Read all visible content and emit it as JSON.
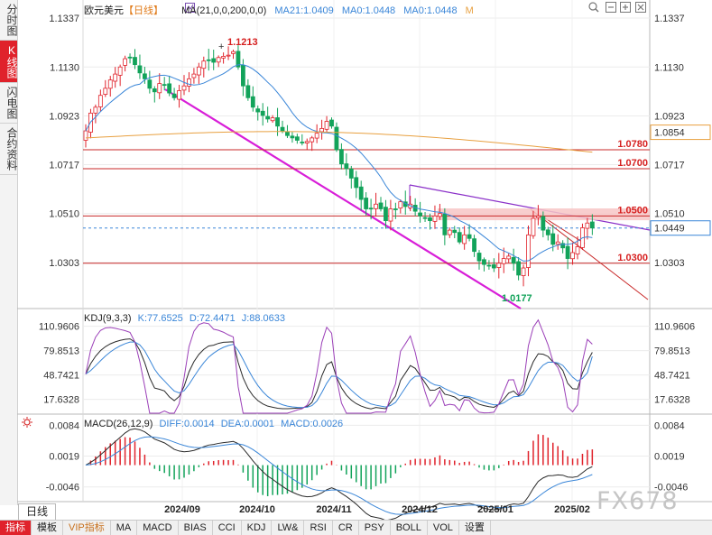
{
  "left_tabs": [
    "分时图",
    "K线图",
    "闪电图",
    "合约资料"
  ],
  "active_tab": 1,
  "header": {
    "symbol": "欧元美元",
    "period_tag": "【日线】",
    "ma_label": "MA(21,0,0,200,0,0)",
    "ma21": "MA21:1.0409",
    "ma0a": "MA0:1.0448",
    "ma0b": "MA0:1.0448",
    "m": "M"
  },
  "kdj_legend": {
    "name": "KDJ(9,3,3)",
    "k": "K:77.6525",
    "d": "D:72.4471",
    "j": "J:88.0633"
  },
  "macd_legend": {
    "name": "MACD(26,12,9)",
    "diff": "DIFF:0.0014",
    "dea": "DEA:0.0001",
    "macd": "MACD:0.0026"
  },
  "period_button": "日线",
  "bottom_tabs": [
    "指标",
    "模板",
    "VIP指标",
    "MA",
    "MACD",
    "BIAS",
    "CCI",
    "KDJ",
    "LW&",
    "RSI",
    "CR",
    "PSY",
    "BOLL",
    "VOL",
    "设置"
  ],
  "watermark": "FX678",
  "chart_data": [
    {
      "type": "candlestick",
      "instrument": "欧元美元",
      "y_ticks": [
        "1.1337",
        "1.1130",
        "1.0923",
        "1.0717",
        "1.0510",
        "1.0303"
      ],
      "ylim": [
        1.01,
        1.1337
      ],
      "x_ticks": [
        "2024/09",
        "2024/10",
        "2024/11",
        "2024/12",
        "2025/01",
        "2025/02"
      ],
      "high_label": "1.1213",
      "low_label": "1.0177",
      "current_price": "1.0449",
      "price_tags": [
        "1.0854"
      ],
      "levels": [
        {
          "label": "1.0780",
          "value": 1.078
        },
        {
          "label": "1.0700",
          "value": 1.07
        },
        {
          "label": "1.0500",
          "value": 1.05
        },
        {
          "label": "1.0300",
          "value": 1.03
        }
      ],
      "close_series": [
        1.086,
        1.0935,
        1.096,
        1.101,
        1.104,
        1.1075,
        1.11,
        1.113,
        1.1165,
        1.117,
        1.114,
        1.1105,
        1.108,
        1.104,
        1.1025,
        1.106,
        1.1055,
        1.102,
        1.1,
        1.103,
        1.105,
        1.108,
        1.11,
        1.113,
        1.1155,
        1.116,
        1.115,
        1.117,
        1.1175,
        1.118,
        1.1195,
        1.113,
        1.105,
        1.1,
        1.096,
        1.094,
        1.0925,
        1.091,
        1.0915,
        1.088,
        1.086,
        1.084,
        1.083,
        1.082,
        1.081,
        1.0815,
        1.083,
        1.085,
        1.087,
        1.09,
        1.088,
        1.078,
        1.072,
        1.07,
        1.066,
        1.062,
        1.057,
        1.053,
        1.053,
        1.055,
        1.053,
        1.048,
        1.053,
        1.053,
        1.056,
        1.054,
        1.055,
        1.052,
        1.05,
        1.049,
        1.048,
        1.05,
        1.051,
        1.042,
        1.044,
        1.043,
        1.039,
        1.042,
        1.0405,
        1.035,
        1.031,
        1.0295,
        1.029,
        1.028,
        1.03,
        1.032,
        1.033,
        1.03,
        1.025,
        1.028,
        1.042,
        1.049,
        1.05,
        1.044,
        1.042,
        1.038,
        1.039,
        1.0365,
        1.032,
        1.0345,
        1.037,
        1.045,
        1.047,
        1.0449
      ],
      "annotation_lines": [
        "magenta downtrend",
        "purple resistance",
        "red channel line"
      ]
    },
    {
      "type": "line",
      "title": "KDJ(9,3,3)",
      "y_ticks": [
        "110.9606",
        "79.8513",
        "48.7421",
        "17.6328"
      ],
      "ylim": [
        0,
        122
      ],
      "series": [
        {
          "name": "K",
          "value": 77.6525,
          "color": "#2b2b2b"
        },
        {
          "name": "D",
          "value": 72.4471,
          "color": "#3a86d8"
        },
        {
          "name": "J",
          "value": 88.0633,
          "color": "#9b3fb8"
        }
      ]
    },
    {
      "type": "bar",
      "title": "MACD(26,12,9)",
      "y_ticks": [
        "0.0084",
        "0.0019",
        "-0.0046"
      ],
      "ylim": [
        -0.0075,
        0.0098
      ],
      "series": [
        {
          "name": "DIFF",
          "value": 0.0014
        },
        {
          "name": "DEA",
          "value": 0.0001
        },
        {
          "name": "MACD",
          "value": 0.0026
        }
      ]
    }
  ]
}
